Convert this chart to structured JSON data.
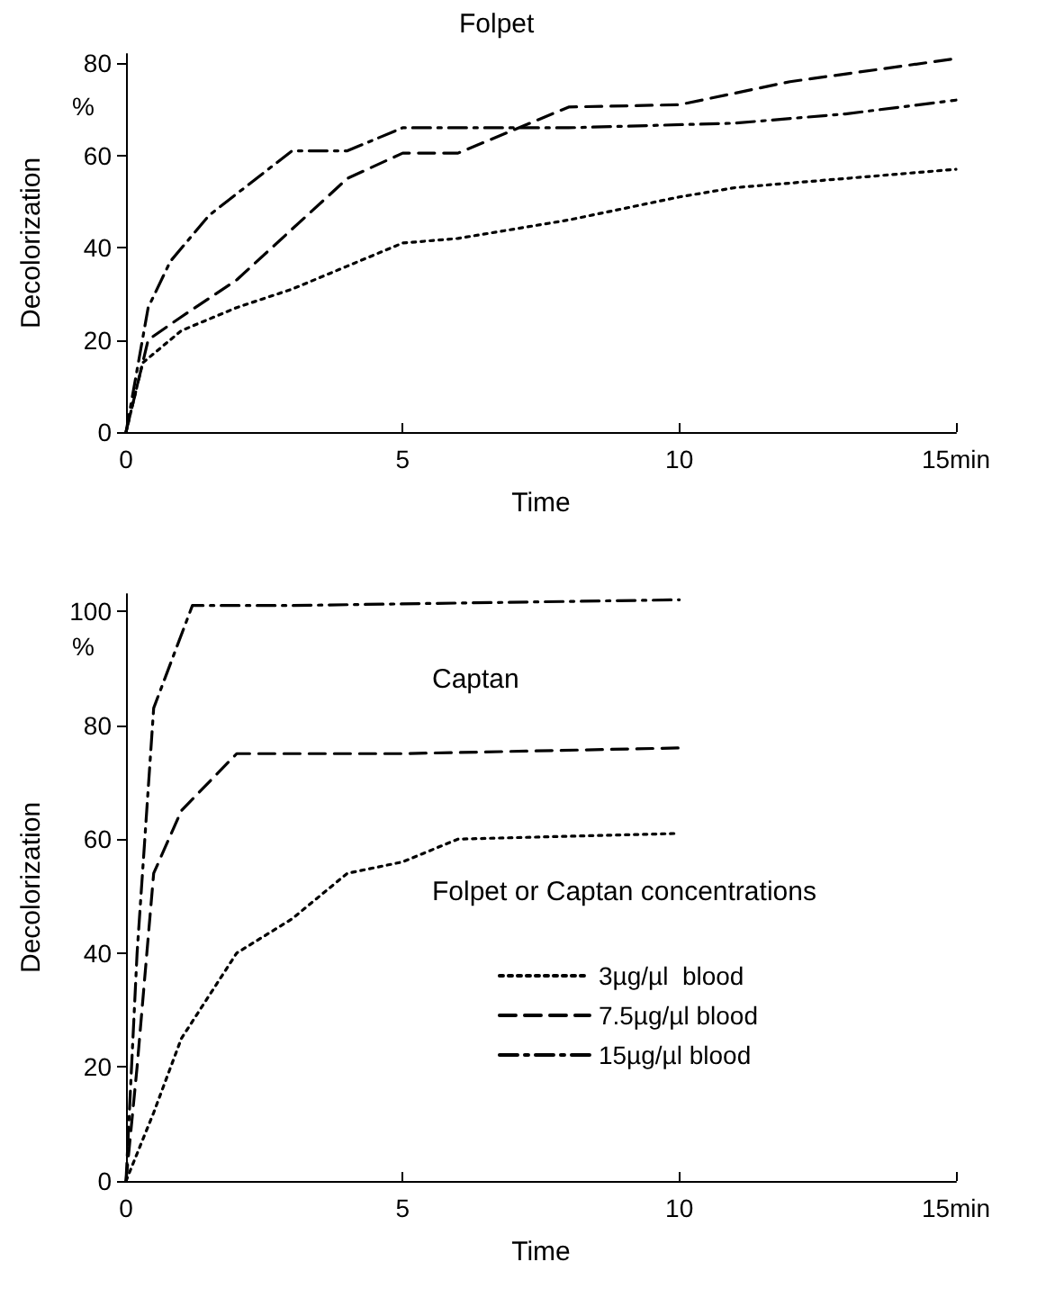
{
  "chart_data": [
    {
      "type": "line",
      "title": "Folpet",
      "xlabel": "Time",
      "ylabel": "Decolorization",
      "annotations": [
        "%"
      ],
      "xlim": [
        0,
        15
      ],
      "xticks": [
        0,
        5,
        10,
        {
          "value": 15,
          "label": "15min"
        }
      ],
      "ylim": [
        0,
        82
      ],
      "yticks": [
        0,
        20,
        40,
        60,
        80
      ],
      "grid": false,
      "legend": false,
      "marker": "none",
      "series": [
        {
          "color": "#000000",
          "line_style": "dotted",
          "x": [
            0,
            0.3,
            1,
            2,
            3,
            4,
            5,
            6,
            8,
            10,
            11,
            13,
            15
          ],
          "values": [
            0,
            15,
            22,
            27,
            31,
            36,
            41,
            42,
            46,
            51,
            53,
            55,
            57
          ]
        },
        {
          "color": "#000000",
          "line_style": "dashed",
          "x": [
            0,
            0.4,
            1,
            2,
            3,
            4,
            5,
            6,
            8,
            10,
            12,
            15
          ],
          "values": [
            0,
            20,
            25,
            33,
            44,
            55,
            60.5,
            60.5,
            70.5,
            71,
            76,
            81
          ]
        },
        {
          "color": "#000000",
          "line_style": "dashdot",
          "x": [
            0,
            0.4,
            0.8,
            1.5,
            3,
            4,
            5,
            6,
            8,
            11,
            13,
            15
          ],
          "values": [
            0,
            27,
            37,
            47,
            61,
            61,
            66,
            66,
            66,
            67,
            69,
            72
          ]
        }
      ]
    },
    {
      "type": "line",
      "title": "Captan",
      "xlabel": "Time",
      "ylabel": "Decolorization",
      "annotations": [
        "%"
      ],
      "legend_title": "Folpet or Captan concentrations",
      "xlim": [
        0,
        15
      ],
      "xticks": [
        0,
        5,
        10,
        {
          "value": 15,
          "label": "15min"
        }
      ],
      "ylim": [
        0,
        103
      ],
      "yticks": [
        0,
        20,
        40,
        60,
        80,
        100
      ],
      "grid": false,
      "legend": "right",
      "marker": "none",
      "series": [
        {
          "name": "3µg/µl  blood",
          "color": "#000000",
          "line_style": "dotted",
          "x": [
            0,
            0.5,
            1,
            2,
            3,
            4,
            5,
            6,
            10
          ],
          "values": [
            0,
            12,
            25,
            40,
            46,
            54,
            56,
            60,
            61
          ]
        },
        {
          "name": "7.5µg/µl blood",
          "color": "#000000",
          "line_style": "dashed",
          "x": [
            0,
            0.2,
            0.5,
            1,
            2,
            5,
            10
          ],
          "values": [
            0,
            20,
            54,
            65,
            75,
            75,
            76
          ]
        },
        {
          "name": "15µg/µl blood",
          "color": "#000000",
          "line_style": "dashdot",
          "x": [
            0,
            0.2,
            0.5,
            1.2,
            3,
            10
          ],
          "values": [
            0,
            40,
            83,
            101,
            101,
            102
          ]
        }
      ]
    }
  ]
}
